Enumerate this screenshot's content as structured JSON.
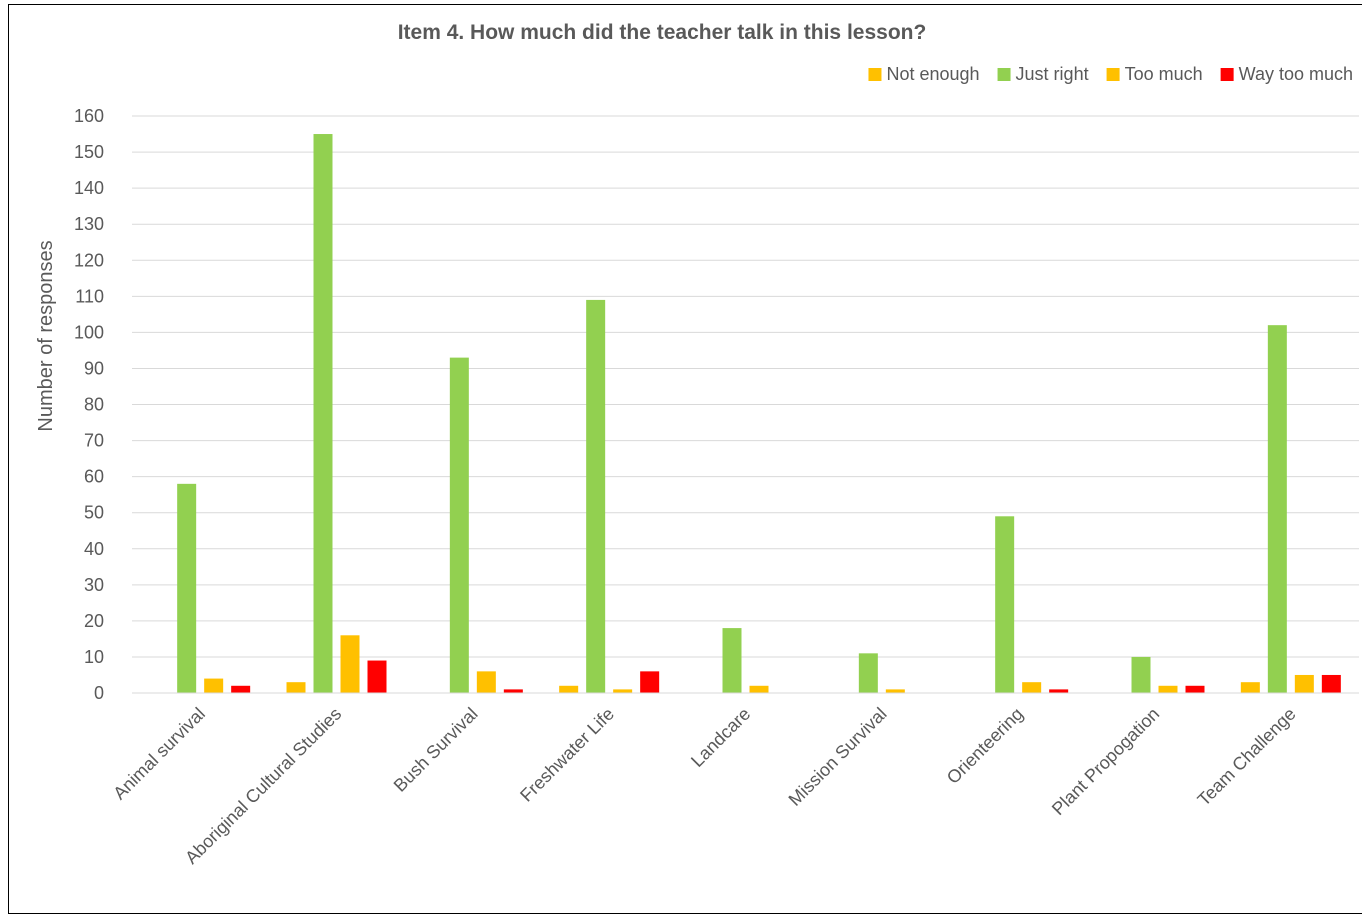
{
  "chart_data": {
    "type": "bar",
    "title": "Item 4. How much did the teacher talk in this lesson?",
    "xlabel": "",
    "ylabel": "Number of responses",
    "ylim": [
      0,
      160
    ],
    "ytick_step": 10,
    "grid": true,
    "legend_position": "top-right",
    "categories": [
      "Animal survival",
      "Aboriginal Cultural Studies",
      "Bush Survival",
      "Freshwater Life",
      "Landcare",
      "Mission Survival",
      "Orienteering",
      "Plant Propogation",
      "Team Challenge"
    ],
    "series": [
      {
        "name": "Not enough",
        "color": "#FFC000",
        "values": [
          0,
          3,
          0,
          2,
          0,
          0,
          0,
          0,
          3
        ]
      },
      {
        "name": "Just right",
        "color": "#92D050",
        "values": [
          58,
          155,
          93,
          109,
          18,
          11,
          49,
          10,
          102
        ]
      },
      {
        "name": "Too much",
        "color": "#FFC000",
        "values": [
          4,
          16,
          6,
          1,
          2,
          1,
          3,
          2,
          5
        ]
      },
      {
        "name": "Way too much",
        "color": "#FF0000",
        "values": [
          2,
          9,
          1,
          6,
          0,
          0,
          1,
          2,
          5
        ]
      }
    ]
  }
}
